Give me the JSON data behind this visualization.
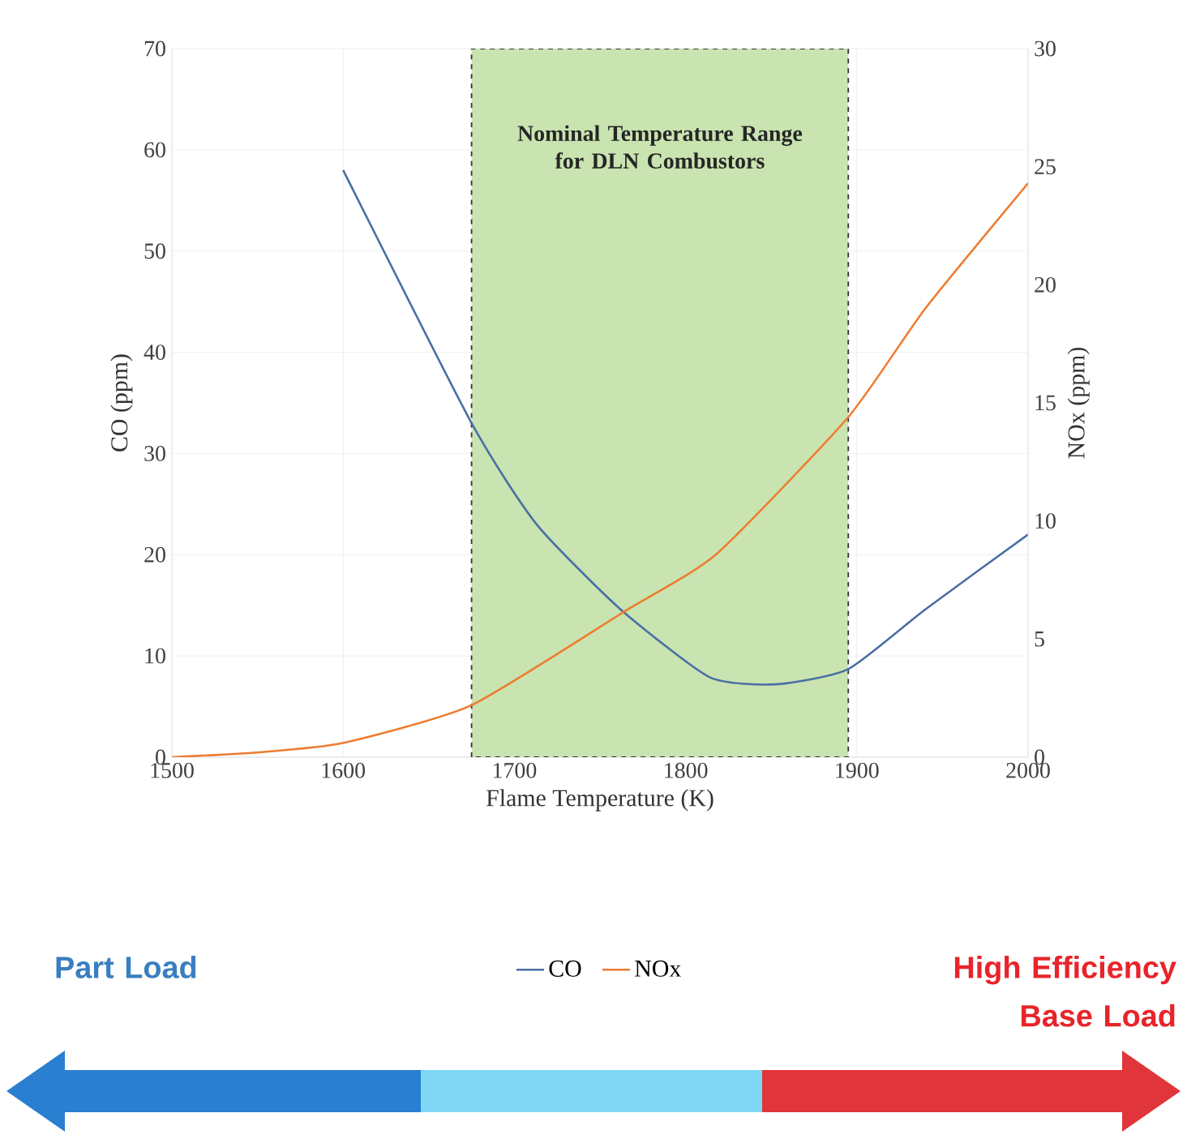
{
  "chart_data": {
    "type": "line",
    "xlabel": "Flame Temperature (K)",
    "ylabel": "CO (ppm)",
    "y2label": "NOx (ppm)",
    "xlim": [
      1500,
      2000
    ],
    "xticks": [
      1500,
      1600,
      1700,
      1800,
      1900,
      2000
    ],
    "ylim": [
      0,
      70
    ],
    "yticks": [
      0,
      10,
      20,
      30,
      40,
      50,
      60,
      70
    ],
    "y2lim": [
      0,
      30
    ],
    "y2ticks": [
      0,
      5,
      10,
      15,
      20,
      25,
      30
    ],
    "grid": true,
    "legend": "bottom",
    "series": [
      {
        "name": "CO",
        "color": "#4a6fa5",
        "x": [
          1600,
          1675,
          1713,
          1762,
          1814,
          1853,
          1895,
          1940,
          2000
        ],
        "values": [
          58,
          33,
          23,
          14.6,
          7.9,
          7.2,
          8.7,
          14.6,
          22
        ]
      },
      {
        "name": "NOx",
        "color": "#ed7d31",
        "axis": "y2",
        "x": [
          1500,
          1550,
          1600,
          1675,
          1765,
          1818,
          1895,
          1940,
          2000
        ],
        "values": [
          0,
          0.2,
          0.6,
          2.2,
          6.2,
          8.6,
          14.4,
          19.0,
          24.3
        ]
      }
    ],
    "bands": [
      {
        "axis": "x",
        "from": 1675,
        "to": 1895,
        "label": "Nominal Temperature Range for DLN Combustors",
        "color": "#c9e4b0"
      }
    ],
    "annotations": [
      "Part Load",
      "High Efficiency Base Load"
    ]
  }
}
